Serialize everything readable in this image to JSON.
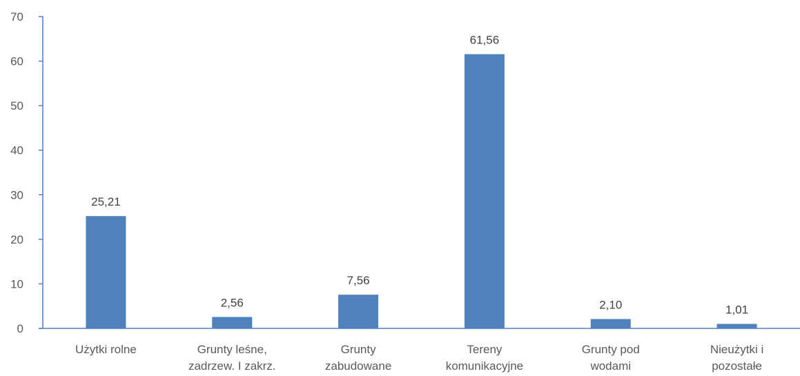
{
  "chart_data": {
    "type": "bar",
    "title": "",
    "xlabel": "",
    "ylabel": "",
    "ylim": [
      0,
      70
    ],
    "yticks": [
      0,
      10,
      20,
      30,
      40,
      50,
      60,
      70
    ],
    "grid": false,
    "legend": "none",
    "categories": [
      [
        "Użytki rolne"
      ],
      [
        "Grunty leśne,",
        "zadrzew. I zakrz."
      ],
      [
        "Grunty",
        "zabudowane"
      ],
      [
        "Tereny",
        "komunikacyjne"
      ],
      [
        "Grunty pod",
        "wodami"
      ],
      [
        "Nieużytki i",
        "pozostałe"
      ]
    ],
    "values": [
      25.21,
      2.56,
      7.56,
      61.56,
      2.1,
      1.01
    ],
    "data_labels": [
      "25,21",
      "2,56",
      "7,56",
      "61,56",
      "2,10",
      "1,01"
    ],
    "colors": {
      "bar": "#4F81BD",
      "axis": "#4F81BD",
      "text": "#595959"
    }
  }
}
